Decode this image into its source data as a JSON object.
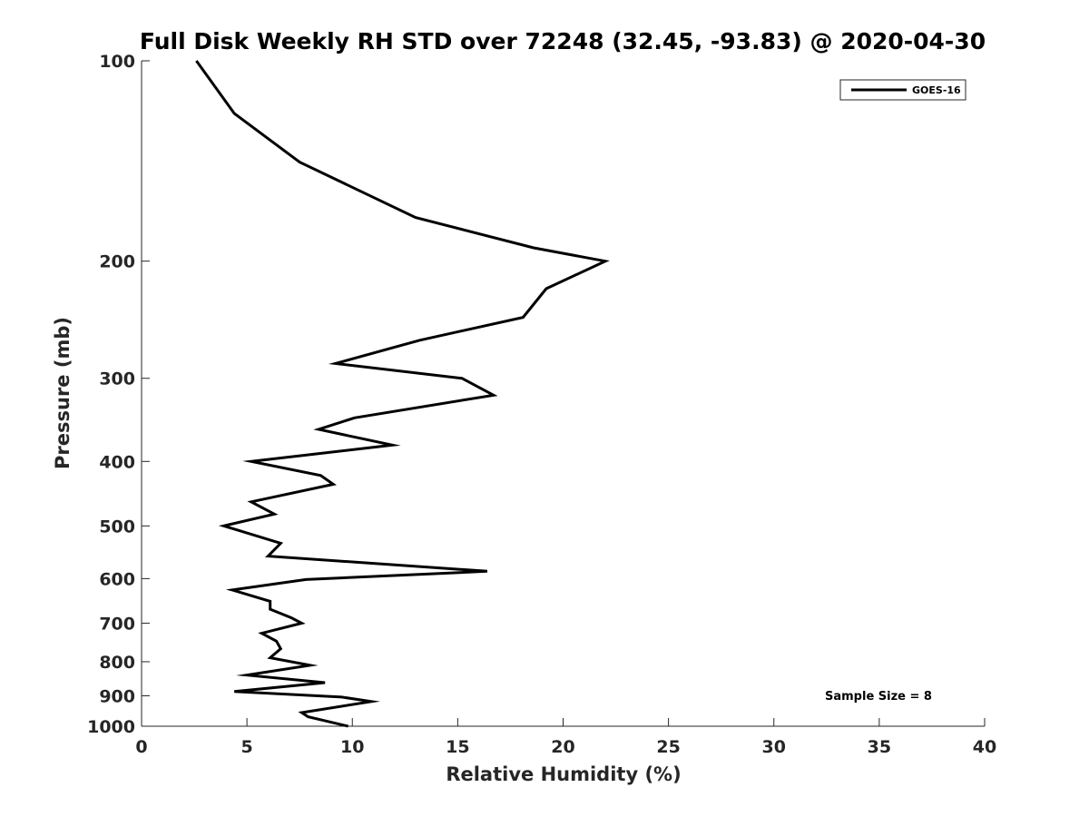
{
  "chart_data": {
    "type": "line",
    "title": "Full Disk Weekly RH STD over 72248 (32.45, -93.83) @ 2020-04-30",
    "xlabel": "Relative Humidity (%)",
    "ylabel": "Pressure (mb)",
    "xlim": [
      0,
      40
    ],
    "ylim": [
      100,
      1000
    ],
    "y_scale": "log",
    "y_reversed": true,
    "x_ticks": [
      0,
      5,
      10,
      15,
      20,
      25,
      30,
      35,
      40
    ],
    "y_ticks": [
      100,
      200,
      300,
      400,
      500,
      600,
      700,
      800,
      900,
      1000
    ],
    "grid": false,
    "legend_position": "top-right",
    "series": [
      {
        "name": "GOES-16",
        "color": "#000000",
        "points": [
          [
            2.6,
            100
          ],
          [
            4.4,
            120
          ],
          [
            7.5,
            142
          ],
          [
            13.0,
            172
          ],
          [
            18.6,
            191
          ],
          [
            22.0,
            200
          ],
          [
            19.2,
            220
          ],
          [
            18.1,
            243
          ],
          [
            13.2,
            263
          ],
          [
            9.2,
            285
          ],
          [
            15.2,
            300
          ],
          [
            16.7,
            318
          ],
          [
            10.1,
            344
          ],
          [
            8.4,
            358
          ],
          [
            11.9,
            378
          ],
          [
            5.2,
            400
          ],
          [
            8.5,
            420
          ],
          [
            9.1,
            433
          ],
          [
            5.2,
            460
          ],
          [
            6.3,
            480
          ],
          [
            3.9,
            500
          ],
          [
            6.6,
            531
          ],
          [
            6.0,
            555
          ],
          [
            16.4,
            585
          ],
          [
            7.8,
            602
          ],
          [
            4.3,
            624
          ],
          [
            6.1,
            649
          ],
          [
            6.1,
            667
          ],
          [
            7.1,
            687
          ],
          [
            7.6,
            700
          ],
          [
            5.7,
            725
          ],
          [
            6.4,
            745
          ],
          [
            6.6,
            765
          ],
          [
            6.1,
            789
          ],
          [
            8.0,
            810
          ],
          [
            5.0,
            838
          ],
          [
            8.7,
            860
          ],
          [
            4.4,
            887
          ],
          [
            9.5,
            904
          ],
          [
            10.9,
            918
          ],
          [
            7.6,
            954
          ],
          [
            7.9,
            968
          ],
          [
            9.8,
            1000
          ]
        ]
      }
    ],
    "annotation": "Sample Size = 8"
  }
}
